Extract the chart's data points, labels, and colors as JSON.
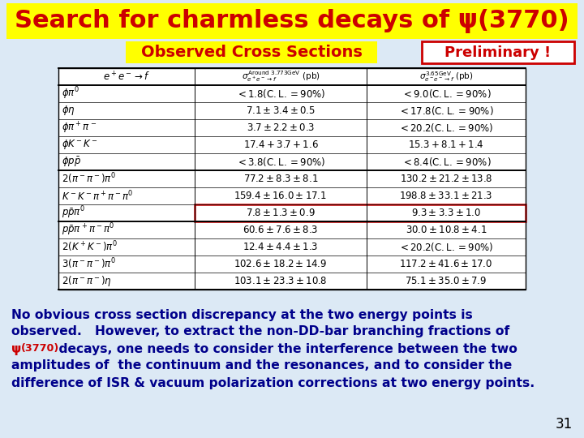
{
  "title": "Search for charmless decays of ψ(3770)",
  "title_bg": "#ffff00",
  "title_color": "#cc0000",
  "subtitle": "Observed Cross Sections",
  "subtitle_bg": "#ffff00",
  "subtitle_color": "#cc0000",
  "prelim_text": "Preliminary !",
  "prelim_color": "#cc0000",
  "prelim_border": "#cc0000",
  "bg_color": "#dce9f5",
  "highlighted_row": 8,
  "highlight_color": "#cc0000",
  "text_body_color": "#00008b",
  "text_body": [
    "No obvious cross section discrepancy at the two energy points is",
    "observed.   However, to extract the non-DD-bar branching fractions of",
    "(3770) decays, one needs to consider the interference between the two",
    "amplitudes of  the continuum and the resonances, and to consider the",
    "difference of ISR & vacuum polarization corrections at two energy points."
  ],
  "page_number": "31"
}
